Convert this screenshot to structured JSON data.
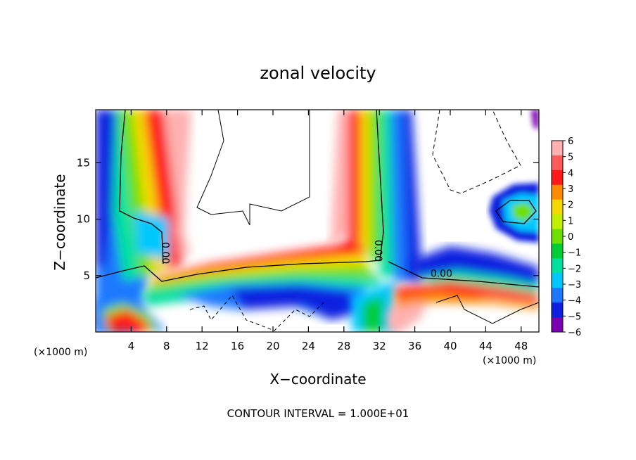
{
  "chart_data": {
    "type": "heatmap",
    "title": "zonal velocity",
    "xlabel": "X−coordinate",
    "ylabel": "Z−coordinate",
    "x_unit": "(×1000 m)",
    "y_unit": "(×1000 m)",
    "xlim": [
      0,
      50
    ],
    "ylim": [
      0,
      19.7
    ],
    "x_ticks": [
      4,
      8,
      12,
      16,
      20,
      24,
      28,
      32,
      36,
      40,
      44,
      48
    ],
    "y_ticks": [
      5,
      10,
      15
    ],
    "x_tick_labels": [
      "4",
      "8",
      "12",
      "16",
      "20",
      "24",
      "28",
      "32",
      "36",
      "40",
      "44",
      "48"
    ],
    "y_tick_labels": [
      "5",
      "10",
      "15"
    ],
    "colorbar": {
      "min": -6,
      "max": 6,
      "ticks": [
        6,
        5,
        4,
        3,
        2,
        1,
        0,
        -1,
        -2,
        -3,
        -4,
        -5,
        -6
      ],
      "tick_labels": [
        "6",
        "5",
        "4",
        "3",
        "2",
        "1",
        "0",
        "−1",
        "−2",
        "−3",
        "−4",
        "−5",
        "−6"
      ],
      "colors": [
        "#ffb0b0",
        "#ff5a5a",
        "#ff1a1a",
        "#ff8c00",
        "#f5d800",
        "#c0f000",
        "#6ee000",
        "#00cc33",
        "#00e0a0",
        "#00c8ff",
        "#1e78ff",
        "#1020e0",
        "#7a00b0"
      ]
    },
    "contour_labels": [
      {
        "text": "0.00",
        "x": 7.5,
        "y": 7.0,
        "rotate": 90
      },
      {
        "text": "0.00",
        "x": 31.5,
        "y": 7.2,
        "rotate": 90
      },
      {
        "text": "0.00",
        "x": 39.0,
        "y": 4.9,
        "rotate": 0
      }
    ],
    "footer": "CONTOUR INTERVAL = 1.000E+01"
  }
}
